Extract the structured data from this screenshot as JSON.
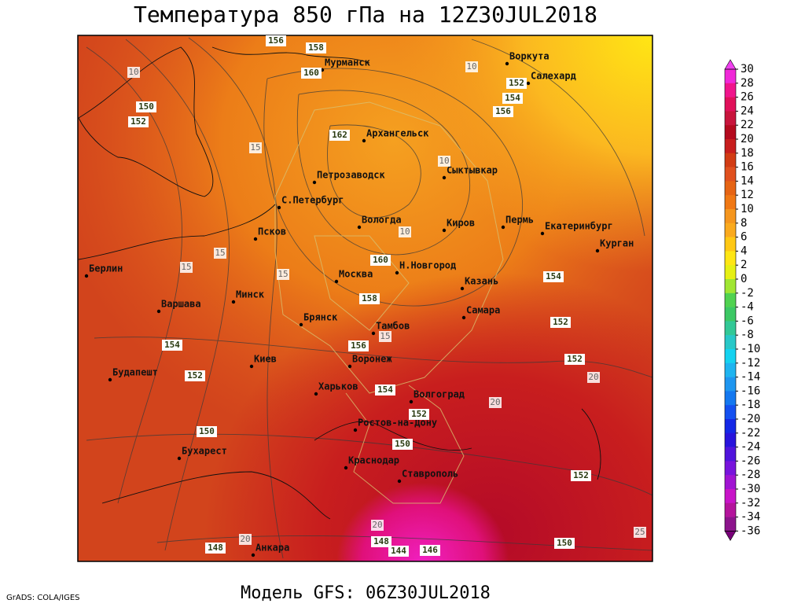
{
  "title": "Температура 850 гПа на 12Z30JUL2018",
  "footer": "Модель GFS: 06Z30JUL2018",
  "credit": "GrADS: COLA/IGES",
  "cities": [
    "Мурманск",
    "Воркута",
    "Салехард",
    "Архангельск",
    "Сыктывкар",
    "Петрозаводск",
    "С.Петербург",
    "Псков",
    "Вологда",
    "Киров",
    "Пермь",
    "Екатеринбург",
    "Курган",
    "Берлин",
    "Москва",
    "Н.Новгород",
    "Казань",
    "Минск",
    "Варшава",
    "Брянск",
    "Самара",
    "Тамбов",
    "Киев",
    "Воронеж",
    "Будапешт",
    "Харьков",
    "Волгоград",
    "Ростов-на-Дону",
    "Бухарест",
    "Краснодар",
    "Ставрополь",
    "Анкара"
  ],
  "height_labels": [
    156,
    158,
    160,
    150,
    152,
    162,
    152,
    154,
    156,
    160,
    154,
    158,
    152,
    156,
    154,
    152,
    152,
    154,
    152,
    150,
    150,
    152,
    150,
    148,
    148,
    144,
    146
  ],
  "temperature_labels": [
    10,
    15,
    10,
    10,
    15,
    15,
    10,
    15,
    15,
    20,
    20,
    20,
    25,
    20
  ],
  "colorbar": {
    "ticks": [
      30,
      28,
      26,
      24,
      22,
      20,
      18,
      16,
      14,
      12,
      10,
      8,
      6,
      4,
      2,
      0,
      -2,
      -4,
      -6,
      -8,
      -10,
      -12,
      -14,
      -16,
      -18,
      -20,
      -22,
      -24,
      -26,
      -28,
      -30,
      -32,
      -34,
      -36
    ],
    "colors": [
      "#f028d8",
      "#f0148c",
      "#e0105a",
      "#c8143c",
      "#b40a1e",
      "#c81e1e",
      "#d23c14",
      "#e0501e",
      "#e66414",
      "#f07814",
      "#f5961e",
      "#faaa1e",
      "#ffc814",
      "#ffe614",
      "#e6f014",
      "#a0e632",
      "#50d250",
      "#3cc864",
      "#32c896",
      "#28c8c8",
      "#14d2f0",
      "#1eb4f0",
      "#1e96f0",
      "#1478f0",
      "#1450f0",
      "#1428e6",
      "#2814dc",
      "#5014dc",
      "#7814dc",
      "#a014d2",
      "#c814c8",
      "#b4149c",
      "#8c148c"
    ],
    "top_color": "#f040f0",
    "bottom_color": "#780078"
  }
}
